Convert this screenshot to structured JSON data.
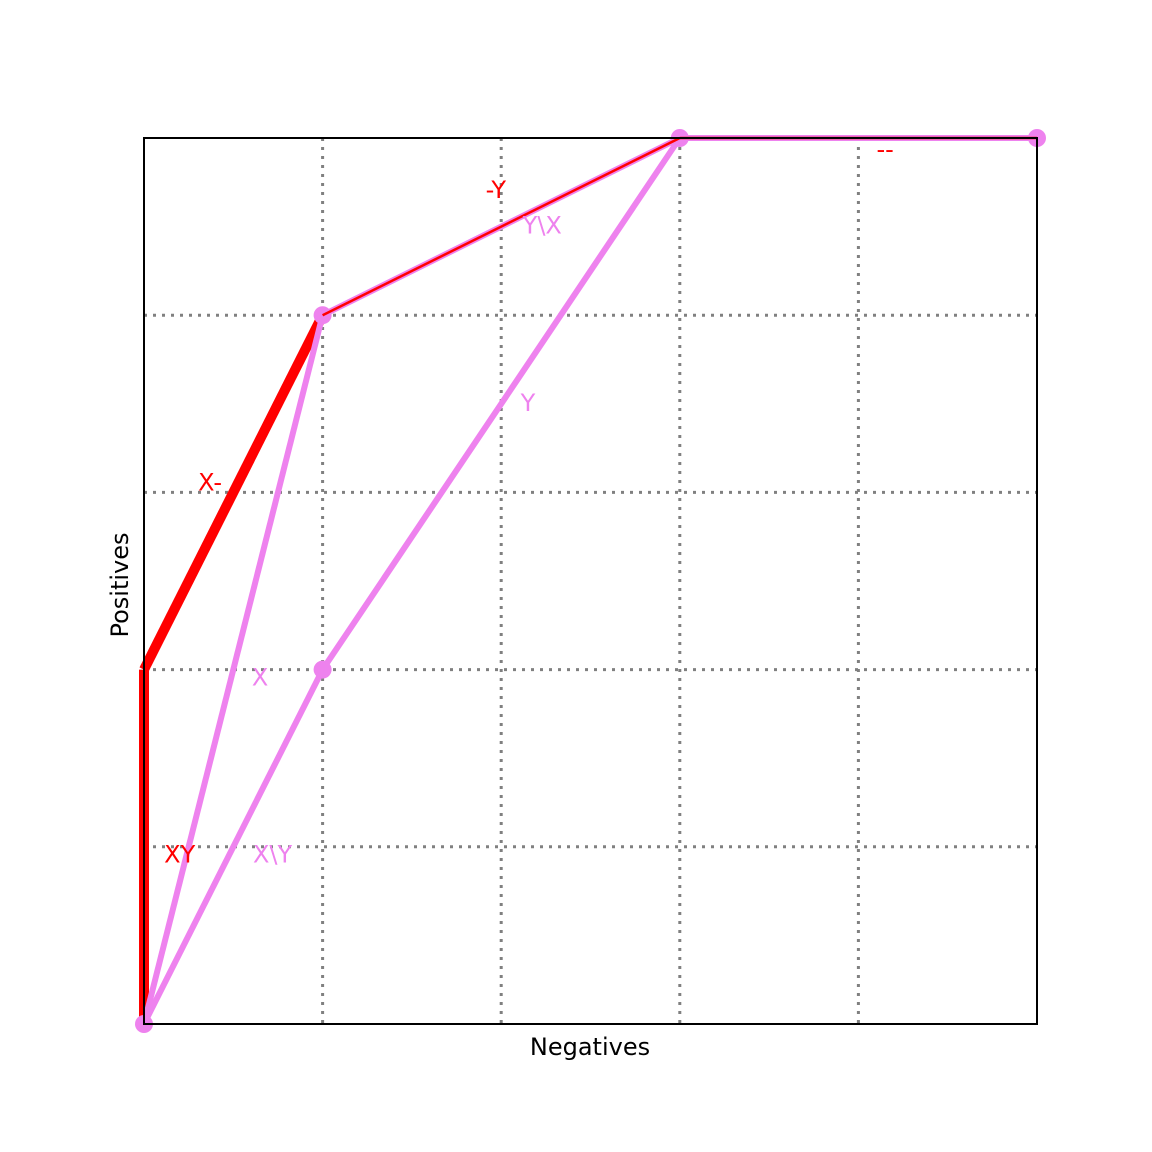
{
  "chart_data": {
    "type": "line",
    "xlabel": "Negatives",
    "ylabel": "Positives",
    "xlim": [
      0,
      5
    ],
    "ylim": [
      0,
      5
    ],
    "grid": true,
    "x_ticks": [
      1,
      2,
      3,
      4
    ],
    "y_ticks": [
      1,
      2,
      3,
      4
    ],
    "colors": {
      "red": "#ff0000",
      "violet": "#ee82ee",
      "grid": "#808080"
    },
    "segments": [
      {
        "series": "red",
        "weight": "thick",
        "from": [
          0,
          0
        ],
        "to": [
          0,
          2
        ],
        "label": "XY",
        "label_at": [
          0.2,
          0.95
        ]
      },
      {
        "series": "red",
        "weight": "thick",
        "from": [
          0,
          2
        ],
        "to": [
          1,
          4
        ],
        "label": "X-",
        "label_at": [
          0.37,
          3.05
        ]
      },
      {
        "series": "red",
        "weight": "thin",
        "from": [
          1,
          4
        ],
        "to": [
          3,
          5
        ],
        "label": "-Y",
        "label_at": [
          1.97,
          4.7
        ]
      },
      {
        "series": "red",
        "weight": "thin",
        "from": [
          3,
          5
        ],
        "to": [
          5,
          5
        ],
        "label": "--",
        "label_at": [
          4.15,
          4.93
        ]
      },
      {
        "series": "violet",
        "weight": "medium",
        "from": [
          0,
          0
        ],
        "to": [
          1,
          4
        ],
        "label": "X",
        "label_at": [
          0.65,
          1.95
        ]
      },
      {
        "series": "violet",
        "weight": "medium",
        "from": [
          1,
          4
        ],
        "to": [
          3,
          5
        ],
        "label": "Y\\X",
        "label_at": [
          2.23,
          4.5
        ]
      },
      {
        "series": "violet",
        "weight": "medium",
        "from": [
          0,
          0
        ],
        "to": [
          1,
          2
        ],
        "label": "X\\Y",
        "label_at": [
          0.72,
          0.95
        ]
      },
      {
        "series": "violet",
        "weight": "medium",
        "from": [
          1,
          2
        ],
        "to": [
          3,
          5
        ],
        "label": "Y",
        "label_at": [
          2.15,
          3.5
        ]
      },
      {
        "series": "violet",
        "weight": "medium",
        "from": [
          3,
          5
        ],
        "to": [
          5,
          5
        ],
        "label": "",
        "label_at": [
          0,
          0
        ]
      }
    ],
    "points": [
      {
        "series": "violet",
        "x": 1,
        "y": 4
      },
      {
        "series": "violet",
        "x": 1,
        "y": 2
      },
      {
        "series": "violet",
        "x": 3,
        "y": 5
      },
      {
        "series": "violet",
        "x": 5,
        "y": 5
      },
      {
        "series": "violet",
        "x": 0,
        "y": 0
      }
    ]
  }
}
